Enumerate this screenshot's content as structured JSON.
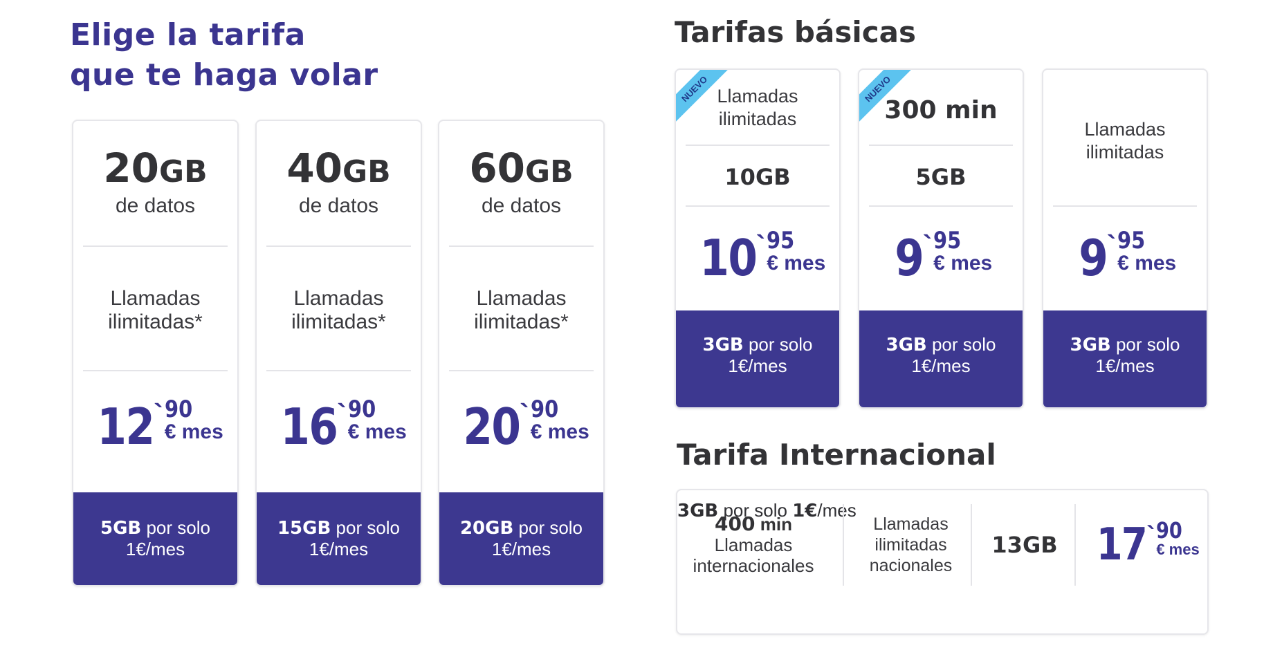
{
  "main_heading": {
    "line1": "Elige la tarifa",
    "line2": "que te haga volar"
  },
  "data_plans": [
    {
      "gb": "20",
      "unit": "GB",
      "subtitle": "de datos",
      "calls": [
        "Llamadas",
        "ilimitadas*"
      ],
      "price": {
        "int": "12",
        "tick": "`",
        "cents": "90",
        "per": "€ mes"
      },
      "extra": {
        "gb": "5GB",
        "text": " por solo",
        "line2": "1€/mes"
      }
    },
    {
      "gb": "40",
      "unit": "GB",
      "subtitle": "de datos",
      "calls": [
        "Llamadas",
        "ilimitadas*"
      ],
      "price": {
        "int": "16",
        "tick": "`",
        "cents": "90",
        "per": "€ mes"
      },
      "extra": {
        "gb": "15GB",
        "text": " por solo",
        "line2": "1€/mes"
      }
    },
    {
      "gb": "60",
      "unit": "GB",
      "subtitle": "de datos",
      "calls": [
        "Llamadas",
        "ilimitadas*"
      ],
      "price": {
        "int": "20",
        "tick": "`",
        "cents": "90",
        "per": "€ mes"
      },
      "extra": {
        "gb": "20GB",
        "text": " por solo",
        "line2": "1€/mes"
      }
    }
  ],
  "basic_section": {
    "title": "Tarifas básicas",
    "plans": [
      {
        "badge": "NUEVO",
        "top": [
          "Llamadas",
          "ilimitadas"
        ],
        "data": "10GB",
        "price": {
          "int": "10",
          "tick": "`",
          "cents": "95",
          "per": "€ mes"
        },
        "extra": {
          "gb": "3GB",
          "text": " por solo",
          "line2": "1€/mes"
        }
      },
      {
        "badge": "NUEVO",
        "top": [
          "300 min"
        ],
        "data": "5GB",
        "price": {
          "int": "9",
          "tick": "`",
          "cents": "95",
          "per": "€ mes"
        },
        "extra": {
          "gb": "3GB",
          "text": " por solo",
          "line2": "1€/mes"
        }
      },
      {
        "badge": "",
        "top": [
          "Llamadas",
          "ilimitadas"
        ],
        "data": "",
        "price": {
          "int": "9",
          "tick": "`",
          "cents": "95",
          "per": "€ mes"
        },
        "extra": {
          "gb": "3GB",
          "text": " por solo",
          "line2": "1€/mes"
        }
      }
    ]
  },
  "international": {
    "title": "Tarifa Internacional",
    "minutes": {
      "num": "400",
      "unit": " min",
      "line2": "Llamadas",
      "line3": "internacionales"
    },
    "national": [
      "Llamadas",
      "ilimitadas",
      "nacionales"
    ],
    "data": "13GB",
    "price": {
      "int": "17",
      "tick": "`",
      "cents": "90",
      "per": "€ mes"
    },
    "extra": {
      "gb": "3GB",
      "text": " por solo ",
      "price": "1€",
      "suffix": "/mes"
    }
  },
  "colors": {
    "brand": "#3d3890",
    "badge": "#5cc3ef",
    "text": "#333336"
  }
}
